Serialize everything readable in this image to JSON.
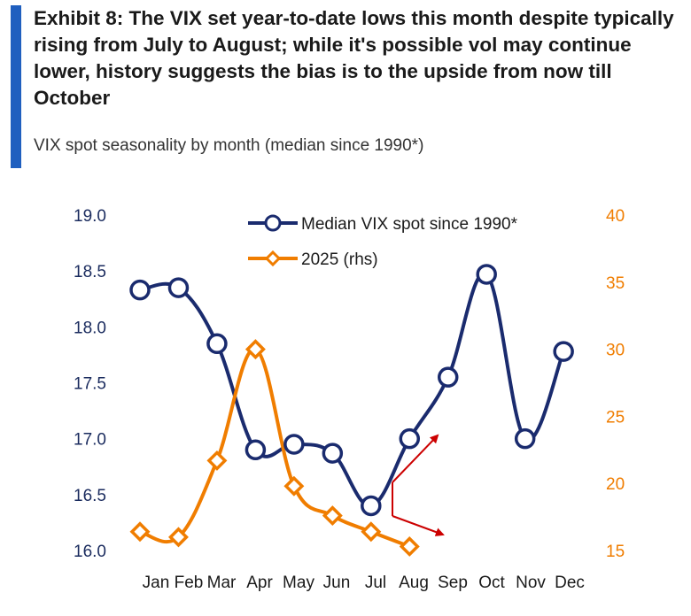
{
  "header": {
    "title": "Exhibit 8: The VIX set year-to-date lows this month despite typically rising from July to August; while it's possible vol may continue lower, history suggests the bias is to the upside from now till October",
    "subtitle": "VIX spot seasonality by month (median since 1990*)"
  },
  "colors": {
    "accent": "#1f5fbf",
    "series_median": "#1a2b6e",
    "series_2025": "#f07d00",
    "arrow": "#cc0000"
  },
  "chart_data": {
    "type": "line",
    "categories": [
      "Jan",
      "Feb",
      "Mar",
      "Apr",
      "May",
      "Jun",
      "Jul",
      "Aug",
      "Sep",
      "Oct",
      "Nov",
      "Dec"
    ],
    "category_labels": [
      "Jan",
      "Feb",
      "Mar",
      "Apr",
      "May",
      "Jun",
      "Jul",
      "Aug",
      "Sep",
      "Oct",
      "Nov",
      "Dec"
    ],
    "y_left": {
      "min": 16.0,
      "max": 19.0,
      "ticks": [
        "16.0",
        "16.5",
        "17.0",
        "17.5",
        "18.0",
        "18.5",
        "19.0"
      ]
    },
    "y_right": {
      "min": 15,
      "max": 40,
      "ticks": [
        "15",
        "20",
        "25",
        "30",
        "35",
        "40"
      ]
    },
    "series": [
      {
        "name": "Median VIX spot since 1990*",
        "axis": "left",
        "marker": "circle",
        "values": [
          18.33,
          18.35,
          17.85,
          16.9,
          16.95,
          16.87,
          16.4,
          17.0,
          17.55,
          18.47,
          17.0,
          17.78
        ]
      },
      {
        "name": "2025 (rhs)",
        "axis": "right",
        "marker": "diamond",
        "values": [
          16.4,
          16.0,
          21.7,
          30.0,
          19.8,
          17.6,
          16.4,
          15.3,
          null,
          null,
          null,
          null
        ]
      }
    ],
    "annotations": [
      {
        "type": "arrow",
        "from_month": "Jul",
        "to_month": "Aug",
        "direction": "up"
      },
      {
        "type": "arrow",
        "from_month": "Jul",
        "to_month": "Aug",
        "direction": "down"
      }
    ],
    "grid": false,
    "legend": "top-center"
  }
}
